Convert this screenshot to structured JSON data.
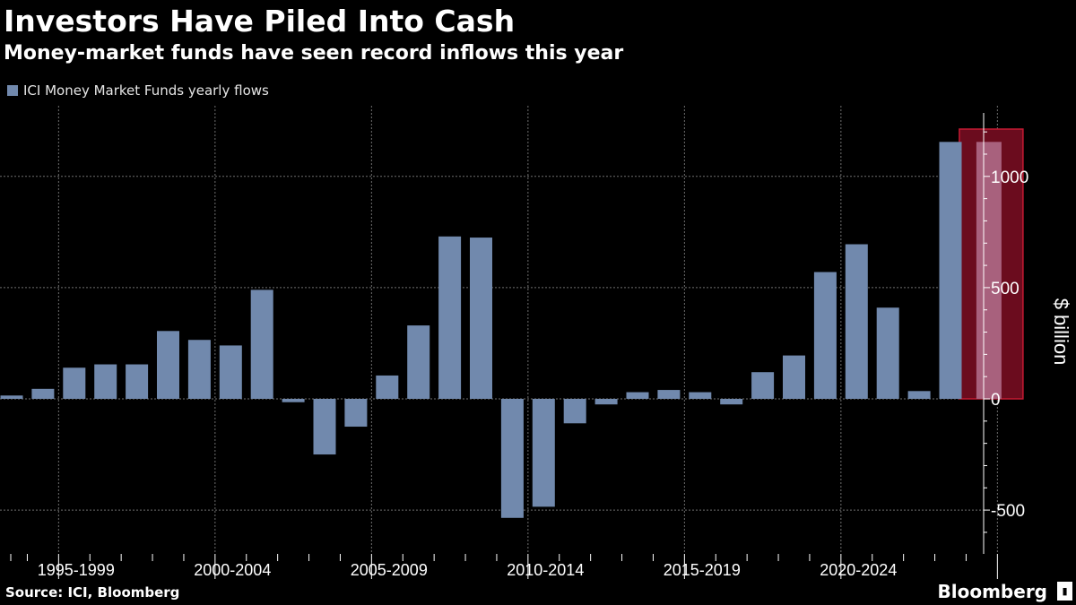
{
  "header": {
    "title": "Investors Have Piled Into Cash",
    "subtitle": "Money-market funds have seen record inflows this year"
  },
  "legend": {
    "label": "ICI Money Market Funds yearly flows"
  },
  "footer": {
    "source": "Source: ICI, Bloomberg",
    "brand": "Bloomberg",
    "brand_icon_glyph": "▮"
  },
  "colors": {
    "background": "#000000",
    "bar": "#7189ad",
    "highlight_fill": "#6b0c1e",
    "highlight_border": "#c41a32",
    "highlight_bar": "#a8617d",
    "grid": "#6f6f6f",
    "axis_text": "#ffffff"
  },
  "chart_data": {
    "type": "bar",
    "title": "Investors Have Piled Into Cash",
    "subtitle": "Money-market funds have seen record inflows this year",
    "xlabel": "",
    "ylabel": "$ billion",
    "x": [
      1993,
      1994,
      1995,
      1996,
      1997,
      1998,
      1999,
      2000,
      2001,
      2002,
      2003,
      2004,
      2005,
      2006,
      2007,
      2008,
      2009,
      2010,
      2011,
      2012,
      2013,
      2014,
      2015,
      2016,
      2017,
      2018,
      2019,
      2020,
      2021,
      2022,
      2023,
      2024
    ],
    "values": [
      15,
      45,
      140,
      155,
      155,
      305,
      265,
      240,
      490,
      -15,
      -250,
      -125,
      105,
      330,
      730,
      725,
      -535,
      -485,
      -110,
      -25,
      30,
      40,
      30,
      -25,
      120,
      195,
      570,
      695,
      410,
      35,
      1155,
      1155
    ],
    "series_name": "ICI Money Market Funds yearly flows",
    "x_tick_labels": [
      "1995-1999",
      "2000-2004",
      "2005-2009",
      "2010-2014",
      "2015-2019",
      "2020-2024"
    ],
    "y_ticks": [
      -500,
      0,
      500,
      1000
    ],
    "ylim": [
      -700,
      1290
    ],
    "highlight": {
      "year": 2024,
      "value": 1155,
      "label": "2024"
    },
    "grid": true,
    "legend_position": "top-left"
  }
}
